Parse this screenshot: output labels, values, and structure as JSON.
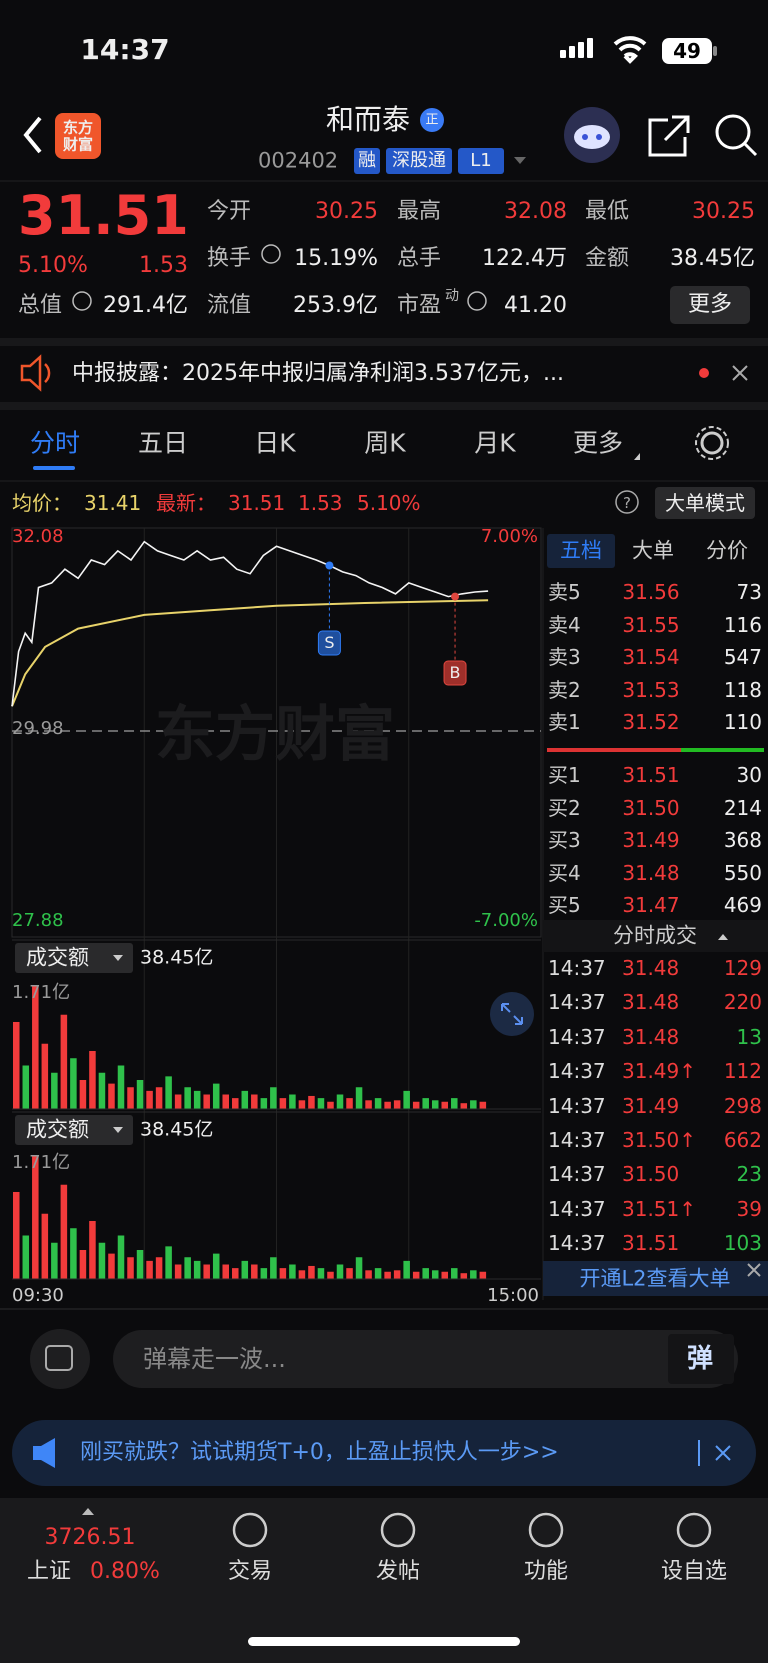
{
  "status": {
    "time": "14:37",
    "battery": "49"
  },
  "header": {
    "logo": "东方财富",
    "title": "和而泰",
    "badge": "正",
    "code": "002402",
    "tags": [
      "融",
      "深股通",
      "L1"
    ]
  },
  "quote": {
    "price": "31.51",
    "change_pct": "5.10%",
    "change": "1.53",
    "more": "更多",
    "rows": [
      [
        {
          "label": "今开",
          "value": "30.25",
          "tone": "up"
        },
        {
          "label": "最高",
          "value": "32.08",
          "tone": "up"
        },
        {
          "label": "最低",
          "value": "30.25",
          "tone": "up"
        }
      ],
      [
        {
          "label": "换手",
          "value": "15.19%",
          "tone": "flat"
        },
        {
          "label": "总手",
          "value": "122.4万",
          "tone": "flat"
        },
        {
          "label": "金额",
          "value": "38.45亿",
          "tone": "flat"
        }
      ],
      [
        {
          "label": "总值",
          "value": "291.4亿",
          "tone": "flat"
        },
        {
          "label": "流值",
          "value": "253.9亿",
          "tone": "flat"
        },
        {
          "label": "市盈",
          "sup": "动",
          "value": "41.20",
          "tone": "flat"
        }
      ]
    ]
  },
  "news": "中报披露：2025年中报归属净利润3.537亿元，...",
  "tabs": [
    "分时",
    "五日",
    "日K",
    "周K",
    "月K",
    "更多"
  ],
  "info": {
    "avg_label": "均价：",
    "avg": "31.41",
    "last_label": "最新：",
    "last": "31.51",
    "change": "1.53",
    "pct": "5.10%",
    "mode": "大单模式"
  },
  "chart": {
    "ylim": [
      27.88,
      32.08
    ],
    "yticks": [
      32.08,
      29.98,
      27.88
    ],
    "pct_labels": [
      "7.00%",
      "-7.00%"
    ],
    "xlim": [
      0,
      240
    ],
    "xticks": [
      {
        "value": 0,
        "label": "09:30"
      },
      {
        "value": 240,
        "label": "15:00"
      }
    ],
    "watermark": "东方财富",
    "minutes": [
      0,
      3,
      6,
      9,
      12,
      18,
      24,
      30,
      36,
      42,
      48,
      54,
      60,
      66,
      72,
      78,
      84,
      90,
      96,
      102,
      108,
      114,
      120,
      126,
      132,
      138,
      144,
      150,
      156,
      162,
      168,
      174,
      180,
      186,
      192,
      198,
      204,
      210,
      216
    ],
    "prices": [
      30.25,
      30.85,
      31.05,
      30.95,
      31.55,
      31.6,
      31.75,
      31.65,
      31.85,
      31.8,
      31.95,
      31.85,
      32.05,
      31.95,
      31.9,
      31.85,
      31.95,
      31.85,
      31.88,
      31.75,
      31.7,
      31.9,
      32.0,
      31.95,
      31.9,
      31.85,
      31.79,
      31.72,
      31.68,
      31.6,
      31.55,
      31.48,
      31.6,
      31.55,
      31.5,
      31.45,
      31.48,
      31.5,
      31.51
    ],
    "avg_minutes": [
      0,
      6,
      15,
      30,
      60,
      90,
      120,
      160,
      216
    ],
    "avg_prices": [
      30.25,
      30.6,
      30.9,
      31.1,
      31.25,
      31.3,
      31.35,
      31.38,
      31.41
    ],
    "markers": [
      {
        "label": "S",
        "minute": 144,
        "price": 31.79,
        "side": "sell"
      },
      {
        "label": "B",
        "minute": 201,
        "price": 31.45,
        "side": "buy"
      }
    ],
    "volume": {
      "title": "成交额",
      "total": "38.45亿",
      "ylim": [
        0,
        1.71
      ],
      "yticks": [
        {
          "value": 1.71,
          "label": "1.71亿"
        }
      ],
      "values": [
        1.2,
        0.6,
        1.71,
        0.9,
        0.5,
        1.3,
        0.7,
        0.4,
        0.8,
        0.5,
        0.35,
        0.6,
        0.3,
        0.4,
        0.25,
        0.3,
        0.45,
        0.2,
        0.3,
        0.25,
        0.2,
        0.35,
        0.2,
        0.15,
        0.25,
        0.2,
        0.15,
        0.3,
        0.15,
        0.2,
        0.12,
        0.18,
        0.15,
        0.1,
        0.2,
        0.15,
        0.3,
        0.12,
        0.15,
        0.1,
        0.12,
        0.25,
        0.1,
        0.15,
        0.12,
        0.1,
        0.15,
        0.08,
        0.12,
        0.1
      ],
      "up": [
        true,
        false,
        true,
        true,
        false,
        true,
        false,
        true,
        true,
        false,
        true,
        false,
        true,
        false,
        true,
        true,
        false,
        true,
        false,
        false,
        true,
        false,
        true,
        true,
        false,
        true,
        false,
        false,
        true,
        false,
        true,
        true,
        false,
        true,
        false,
        true,
        false,
        true,
        false,
        true,
        true,
        false,
        true,
        false,
        false,
        true,
        false,
        true,
        false,
        true
      ]
    }
  },
  "orderbook": {
    "tabs": [
      "五档",
      "大单",
      "分价"
    ],
    "asks": [
      {
        "label": "卖5",
        "price": "31.56",
        "vol": "73"
      },
      {
        "label": "卖4",
        "price": "31.55",
        "vol": "116"
      },
      {
        "label": "卖3",
        "price": "31.54",
        "vol": "547"
      },
      {
        "label": "卖2",
        "price": "31.53",
        "vol": "118"
      },
      {
        "label": "卖1",
        "price": "31.52",
        "vol": "110"
      }
    ],
    "bids": [
      {
        "label": "买1",
        "price": "31.51",
        "vol": "30"
      },
      {
        "label": "买2",
        "price": "31.50",
        "vol": "214"
      },
      {
        "label": "买3",
        "price": "31.49",
        "vol": "368"
      },
      {
        "label": "买4",
        "price": "31.48",
        "vol": "550"
      },
      {
        "label": "买5",
        "price": "31.47",
        "vol": "469"
      }
    ]
  },
  "trades": {
    "title": "分时成交",
    "rows": [
      {
        "time": "14:37",
        "price": "31.48",
        "vol": "129",
        "side": "buy"
      },
      {
        "time": "14:37",
        "price": "31.48",
        "vol": "220",
        "side": "buy"
      },
      {
        "time": "14:37",
        "price": "31.48",
        "vol": "13",
        "side": "sell"
      },
      {
        "time": "14:37",
        "price": "31.49↑",
        "vol": "112",
        "side": "buy"
      },
      {
        "time": "14:37",
        "price": "31.49",
        "vol": "298",
        "side": "buy"
      },
      {
        "time": "14:37",
        "price": "31.50↑",
        "vol": "662",
        "side": "buy"
      },
      {
        "time": "14:37",
        "price": "31.50",
        "vol": "23",
        "side": "sell"
      },
      {
        "time": "14:37",
        "price": "31.51↑",
        "vol": "39",
        "side": "buy"
      },
      {
        "time": "14:37",
        "price": "31.51",
        "vol": "103",
        "side": "sell"
      }
    ]
  },
  "l2": "开通L2查看大单",
  "comment": {
    "placeholder": "弹幕走一波...",
    "button": "弹"
  },
  "ad": "刚买就跌？试试期货T+0，止盈止损快人一步>>",
  "nav": {
    "index": {
      "value": "3726.51",
      "name": "上证",
      "pct": "0.80%"
    },
    "items": [
      "交易",
      "发帖",
      "功能",
      "设自选"
    ]
  }
}
